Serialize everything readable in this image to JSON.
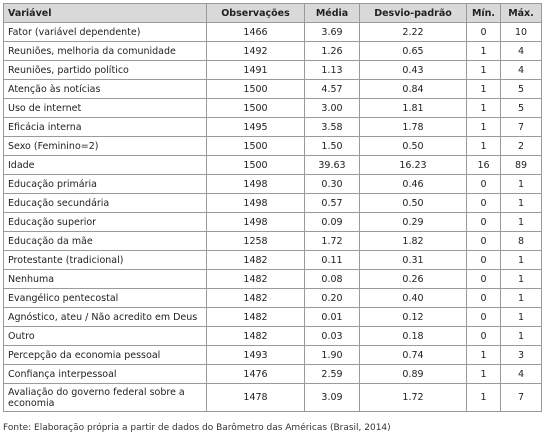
{
  "table": {
    "header": [
      "Variável",
      "Observações",
      "Média",
      "Desvio-padrão",
      "Mín.",
      "Máx."
    ],
    "rows": [
      [
        "Fator (variável dependente)",
        "1466",
        "3.69",
        "2.22",
        "0",
        "10"
      ],
      [
        "Reuniões, melhoria da comunidade",
        "1492",
        "1.26",
        "0.65",
        "1",
        "4"
      ],
      [
        "Reuniões, partido político",
        "1491",
        "1.13",
        "0.43",
        "1",
        "4"
      ],
      [
        "Atenção às notícias",
        "1500",
        "4.57",
        "0.84",
        "1",
        "5"
      ],
      [
        "Uso de internet",
        "1500",
        "3.00",
        "1.81",
        "1",
        "5"
      ],
      [
        "Eficácia interna",
        "1495",
        "3.58",
        "1.78",
        "1",
        "7"
      ],
      [
        "Sexo (Feminino=2)",
        "1500",
        "1.50",
        "0.50",
        "1",
        "2"
      ],
      [
        "Idade",
        "1500",
        "39.63",
        "16.23",
        "16",
        "89"
      ],
      [
        "Educação primária",
        "1498",
        "0.30",
        "0.46",
        "0",
        "1"
      ],
      [
        "Educação secundária",
        "1498",
        "0.57",
        "0.50",
        "0",
        "1"
      ],
      [
        "Educação superior",
        "1498",
        "0.09",
        "0.29",
        "0",
        "1"
      ],
      [
        "Educação da mãe",
        "1258",
        "1.72",
        "1.82",
        "0",
        "8"
      ],
      [
        "Protestante (tradicional)",
        "1482",
        "0.11",
        "0.31",
        "0",
        "1"
      ],
      [
        "Nenhuma",
        "1482",
        "0.08",
        "0.26",
        "0",
        "1"
      ],
      [
        "Evangélico pentecostal",
        "1482",
        "0.20",
        "0.40",
        "0",
        "1"
      ],
      [
        "Agnóstico, ateu / Não acredito em Deus",
        "1482",
        "0.01",
        "0.12",
        "0",
        "1"
      ],
      [
        "Outro",
        "1482",
        "0.03",
        "0.18",
        "0",
        "1"
      ],
      [
        "Percepção da economia pessoal",
        "1493",
        "1.90",
        "0.74",
        "1",
        "3"
      ],
      [
        "Confiança interpessoal",
        "1476",
        "2.59",
        "0.89",
        "1",
        "4"
      ],
      [
        "Avaliação do governo federal sobre a economia",
        "1478",
        "3.09",
        "1.72",
        "1",
        "7"
      ]
    ]
  },
  "footer": {
    "source": "Fonte: Elaboração própria a partir de dados do Barômetro das Américas (Brasil, 2014)"
  }
}
